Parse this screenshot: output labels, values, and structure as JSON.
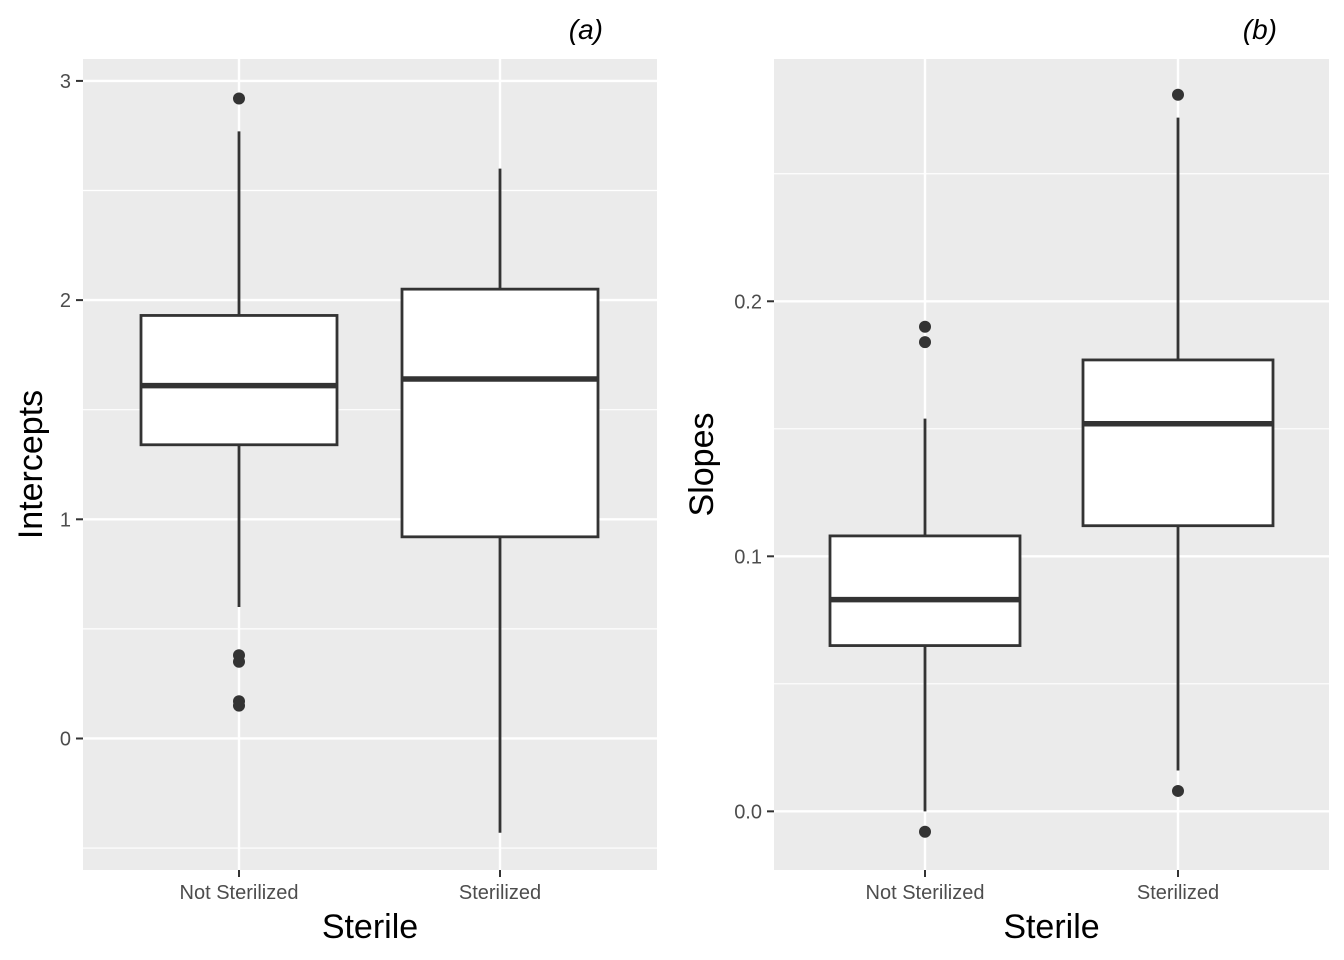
{
  "chart_data": [
    {
      "type": "box",
      "title": "(a)",
      "xlabel": "Sterile",
      "ylabel": "Intercepts",
      "categories": [
        "Not Sterilized",
        "Sterilized"
      ],
      "ylim": [
        -0.6,
        3.1
      ],
      "yticks": [
        0,
        1,
        2,
        3
      ],
      "ytick_labels": [
        "0",
        "1",
        "2",
        "3"
      ],
      "boxes": [
        {
          "category": "Not Sterilized",
          "whisker_low": 0.6,
          "q1": 1.34,
          "median": 1.61,
          "q3": 1.93,
          "whisker_high": 2.77,
          "outliers": [
            2.92,
            0.38,
            0.35,
            0.17,
            0.15
          ]
        },
        {
          "category": "Sterilized",
          "whisker_low": -0.43,
          "q1": 0.92,
          "median": 1.64,
          "q3": 2.05,
          "whisker_high": 2.6,
          "outliers": []
        }
      ],
      "grid": true
    },
    {
      "type": "box",
      "title": "(b)",
      "xlabel": "Sterile",
      "ylabel": "Slopes",
      "categories": [
        "Not Sterilized",
        "Sterilized"
      ],
      "ylim": [
        -0.023,
        0.295
      ],
      "yticks": [
        0.0,
        0.1,
        0.2
      ],
      "ytick_labels": [
        "0.0",
        "0.1",
        "0.2"
      ],
      "boxes": [
        {
          "category": "Not Sterilized",
          "whisker_low": 0.0,
          "q1": 0.065,
          "median": 0.083,
          "q3": 0.108,
          "whisker_high": 0.154,
          "outliers": [
            0.19,
            0.184,
            -0.008
          ]
        },
        {
          "category": "Sterilized",
          "whisker_low": 0.016,
          "q1": 0.112,
          "median": 0.152,
          "q3": 0.177,
          "whisker_high": 0.272,
          "outliers": [
            0.281,
            0.008
          ]
        }
      ],
      "grid": true
    }
  ]
}
